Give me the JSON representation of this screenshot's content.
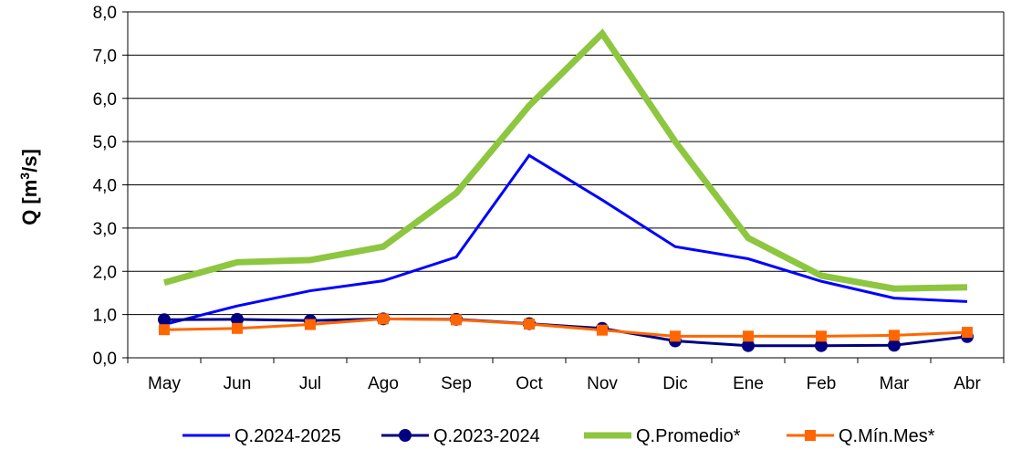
{
  "chart_data": {
    "type": "line",
    "title": "",
    "xlabel": "",
    "ylabel": "Q [m³/s]",
    "ylabel_parts": {
      "base": "Q [m",
      "sup": "3",
      "tail": "/s]"
    },
    "ylim": [
      0,
      8
    ],
    "ytick_labels": [
      "0,0",
      "1,0",
      "2,0",
      "3,0",
      "4,0",
      "5,0",
      "6,0",
      "7,0",
      "8,0"
    ],
    "grid": true,
    "legend_position": "bottom",
    "categories": [
      "May",
      "Jun",
      "Jul",
      "Ago",
      "Sep",
      "Oct",
      "Nov",
      "Dic",
      "Ene",
      "Feb",
      "Mar",
      "Abr"
    ],
    "series": [
      {
        "name": "Q.2024-2025",
        "color": "#0000ff",
        "marker": "none",
        "values": [
          0.77,
          1.2,
          1.55,
          1.78,
          2.33,
          4.68,
          3.65,
          2.57,
          2.29,
          1.77,
          1.38,
          1.3
        ]
      },
      {
        "name": "Q.2023-2024",
        "color": "#000080",
        "marker": "circle",
        "values": [
          0.88,
          0.89,
          0.86,
          0.9,
          0.89,
          0.79,
          0.68,
          0.39,
          0.28,
          0.28,
          0.29,
          0.49
        ]
      },
      {
        "name": "Q.Promedio*",
        "color": "#8dc63f",
        "marker": "none",
        "values": [
          1.74,
          2.21,
          2.26,
          2.57,
          3.81,
          5.83,
          7.5,
          5.0,
          2.77,
          1.9,
          1.6,
          1.63
        ]
      },
      {
        "name": "Q.Mín.Mes*",
        "color": "#ff6600",
        "marker": "square",
        "values": [
          0.65,
          0.68,
          0.77,
          0.9,
          0.88,
          0.78,
          0.64,
          0.5,
          0.5,
          0.5,
          0.52,
          0.59
        ]
      }
    ]
  }
}
